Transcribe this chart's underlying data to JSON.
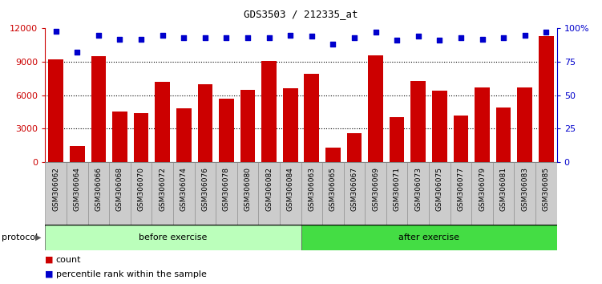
{
  "title": "GDS3503 / 212335_at",
  "categories": [
    "GSM306062",
    "GSM306064",
    "GSM306066",
    "GSM306068",
    "GSM306070",
    "GSM306072",
    "GSM306074",
    "GSM306076",
    "GSM306078",
    "GSM306080",
    "GSM306082",
    "GSM306084",
    "GSM306063",
    "GSM306065",
    "GSM306067",
    "GSM306069",
    "GSM306071",
    "GSM306073",
    "GSM306075",
    "GSM306077",
    "GSM306079",
    "GSM306081",
    "GSM306083",
    "GSM306085"
  ],
  "counts": [
    9200,
    1400,
    9500,
    4500,
    4400,
    7200,
    4800,
    7000,
    5700,
    6500,
    9100,
    6600,
    7900,
    1300,
    2600,
    9600,
    4000,
    7300,
    6400,
    4200,
    6700,
    4900,
    6700,
    11300
  ],
  "percentile_ranks": [
    98,
    82,
    95,
    92,
    92,
    95,
    93,
    93,
    93,
    93,
    93,
    95,
    94,
    88,
    93,
    97,
    91,
    94,
    91,
    93,
    92,
    93,
    95,
    97
  ],
  "bar_color": "#cc0000",
  "dot_color": "#0000cc",
  "before_exercise_count": 12,
  "after_exercise_count": 12,
  "before_color": "#bbffbb",
  "after_color": "#44dd44",
  "ylim_left": [
    0,
    12000
  ],
  "ylim_right": [
    0,
    100
  ],
  "yticks_left": [
    0,
    3000,
    6000,
    9000,
    12000
  ],
  "yticks_right": [
    0,
    25,
    50,
    75,
    100
  ],
  "ytick_right_labels": [
    "0",
    "25",
    "50",
    "75",
    "100%"
  ],
  "grid_values": [
    3000,
    6000,
    9000
  ],
  "background_color": "#ffffff",
  "xtick_bg_color": "#cccccc"
}
